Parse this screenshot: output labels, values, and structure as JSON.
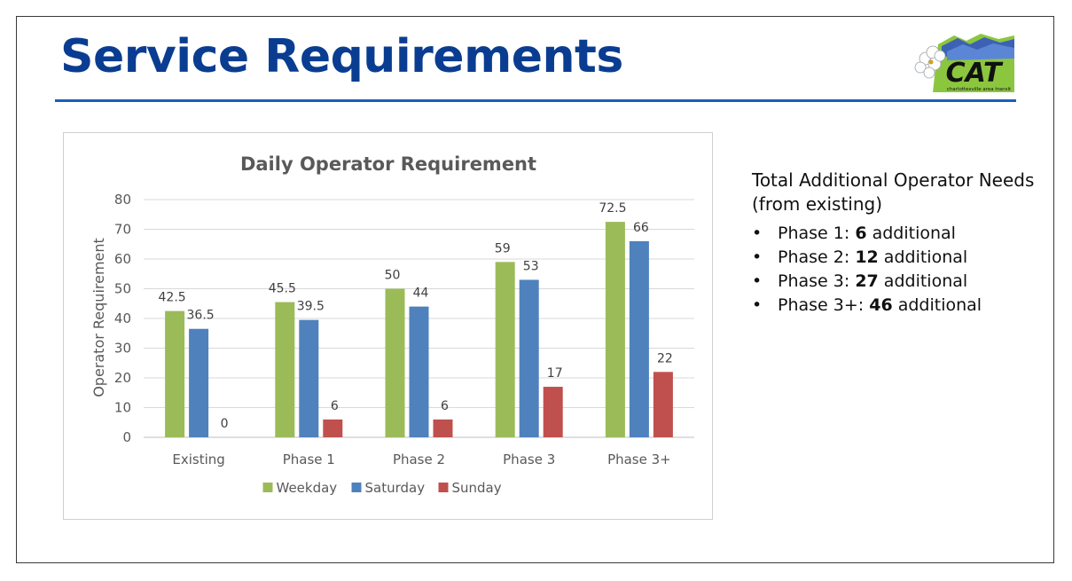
{
  "slide": {
    "title": "Service Requirements",
    "logo": {
      "text": "CAT",
      "subtext": "charlottesville area transit"
    }
  },
  "side_panel": {
    "heading": "Total Additional Operator Needs (from existing)",
    "bullet_char": "•",
    "items": [
      {
        "prefix": "Phase 1: ",
        "value": "6",
        "suffix": " additional"
      },
      {
        "prefix": "Phase 2: ",
        "value": "12",
        "suffix": " additional"
      },
      {
        "prefix": "Phase 3: ",
        "value": "27",
        "suffix": " additional"
      },
      {
        "prefix": "Phase 3+: ",
        "value": "46",
        "suffix": " additional"
      }
    ]
  },
  "chart_data": {
    "type": "bar",
    "title": "Daily Operator Requirement",
    "xlabel": "",
    "ylabel": "Operator Requirement",
    "ylim": [
      0,
      80
    ],
    "yticks": [
      0,
      10,
      20,
      30,
      40,
      50,
      60,
      70,
      80
    ],
    "grid": true,
    "legend": "bottom",
    "categories": [
      "Existing",
      "Phase 1",
      "Phase 2",
      "Phase 3",
      "Phase 3+"
    ],
    "series": [
      {
        "name": "Weekday",
        "color": "#9bbb59",
        "values": [
          42.5,
          45.5,
          50,
          59,
          72.5
        ]
      },
      {
        "name": "Saturday",
        "color": "#4f81bd",
        "values": [
          36.5,
          39.5,
          44,
          53,
          66
        ]
      },
      {
        "name": "Sunday",
        "color": "#c0504d",
        "values": [
          0,
          6,
          6,
          17,
          22
        ]
      }
    ]
  }
}
